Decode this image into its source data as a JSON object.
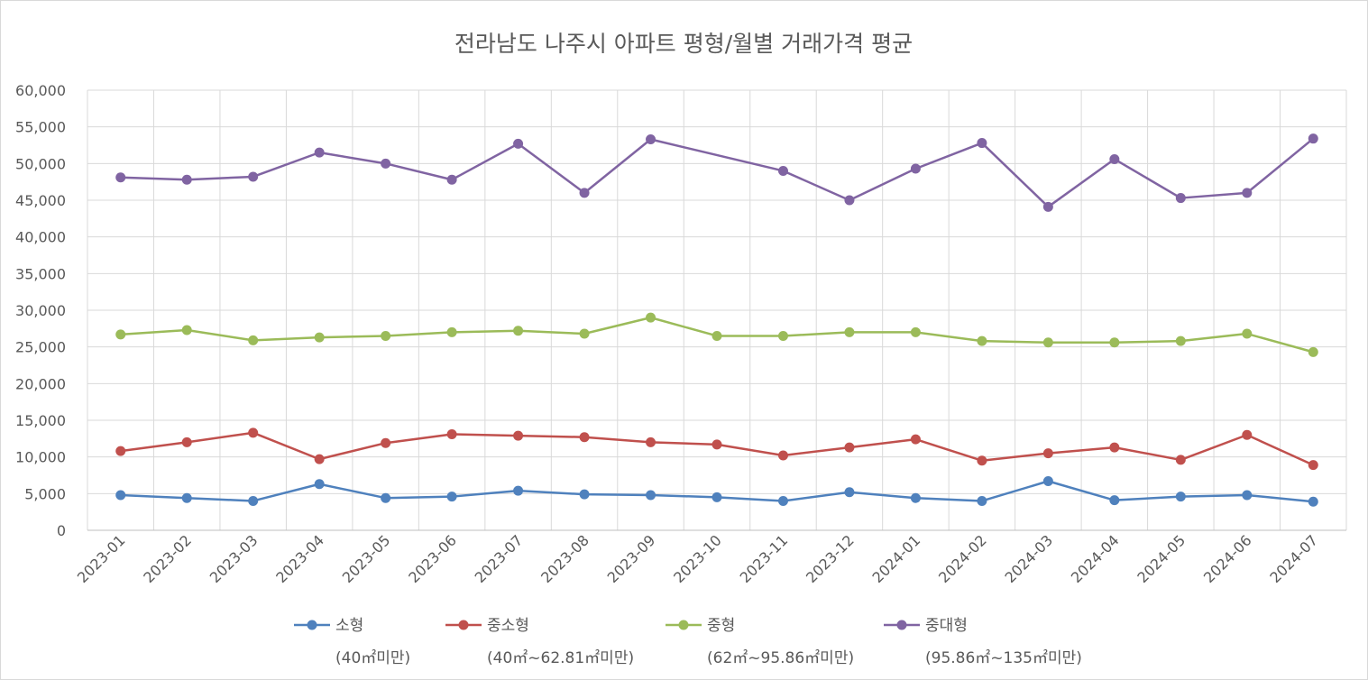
{
  "chart_data": {
    "type": "line",
    "title": "전라남도 나주시 아파트 평형/월별 거래가격 평균",
    "xlabel": "",
    "ylabel": "",
    "ylim": [
      0,
      60000
    ],
    "ytick_step": 5000,
    "ytick_labels": [
      "0",
      "5,000",
      "10,000",
      "15,000",
      "20,000",
      "25,000",
      "30,000",
      "35,000",
      "40,000",
      "45,000",
      "50,000",
      "55,000",
      "60,000"
    ],
    "grid": true,
    "legend_position": "bottom",
    "categories": [
      "2023-01",
      "2023-02",
      "2023-03",
      "2023-04",
      "2023-05",
      "2023-06",
      "2023-07",
      "2023-08",
      "2023-09",
      "2023-10",
      "2023-11",
      "2023-12",
      "2024-01",
      "2024-02",
      "2024-03",
      "2024-04",
      "2024-05",
      "2024-06",
      "2024-07"
    ],
    "series": [
      {
        "name": "소형",
        "subtitle": "(40㎡미만)",
        "color": "#4f81bd",
        "values": [
          4800,
          4400,
          4000,
          6300,
          4400,
          4600,
          5400,
          4900,
          4800,
          4500,
          4000,
          5200,
          4400,
          4000,
          6700,
          4100,
          4600,
          4800,
          3900
        ]
      },
      {
        "name": "중소형",
        "subtitle": "(40㎡~62.81㎡미만)",
        "color": "#c0504d",
        "values": [
          10800,
          12000,
          13300,
          9700,
          11900,
          13100,
          12900,
          12700,
          12000,
          11700,
          10200,
          11300,
          12400,
          9500,
          10500,
          11300,
          9600,
          13000,
          8900
        ]
      },
      {
        "name": "중형",
        "subtitle": "(62㎡~95.86㎡미만)",
        "color": "#9bbb59",
        "values": [
          26700,
          27300,
          25900,
          26300,
          26500,
          27000,
          27200,
          26800,
          29000,
          26500,
          26500,
          27000,
          27000,
          25800,
          25600,
          25600,
          25800,
          26800,
          24300
        ]
      },
      {
        "name": "중대형",
        "subtitle": "(95.86㎡~135㎡미만)",
        "color": "#8064a2",
        "values": [
          48100,
          47800,
          48200,
          51500,
          50000,
          47800,
          52700,
          46000,
          53300,
          null,
          49000,
          45000,
          49300,
          52800,
          44100,
          50600,
          45300,
          46000,
          53400
        ]
      }
    ]
  }
}
